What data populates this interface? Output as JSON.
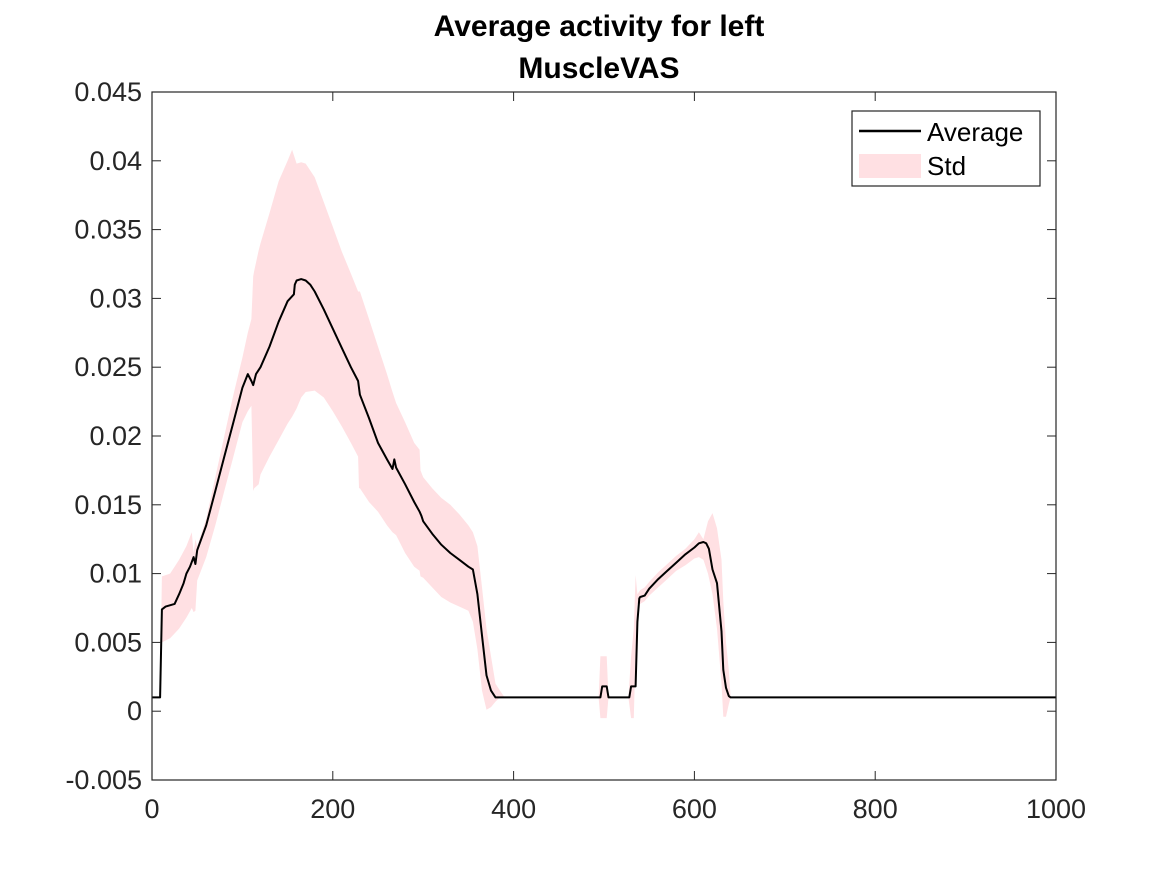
{
  "chart_data": {
    "type": "line",
    "title": [
      "Average activity for left",
      "MuscleVAS"
    ],
    "xlabel": "",
    "ylabel": "",
    "xlim": [
      0,
      1000
    ],
    "ylim": [
      -0.005,
      0.045
    ],
    "grid": false,
    "legend_placement": "top-right",
    "x_ticks": [
      0,
      200,
      400,
      600,
      800,
      1000
    ],
    "x_tick_labels": [
      "0",
      "200",
      "400",
      "600",
      "800",
      "1000"
    ],
    "y_ticks": [
      -0.005,
      0,
      0.005,
      0.01,
      0.015,
      0.02,
      0.025,
      0.03,
      0.035,
      0.04,
      0.045
    ],
    "y_tick_labels": [
      "-0.005",
      "0",
      "0.005",
      "0.01",
      "0.015",
      "0.02",
      "0.025",
      "0.03",
      "0.035",
      "0.04",
      "0.045"
    ],
    "series": [
      {
        "name": "Average",
        "color": "#000000",
        "x": [
          0,
          9,
          11,
          15,
          25,
          30,
          35,
          38,
          42,
          46,
          48,
          50,
          60,
          70,
          80,
          90,
          100,
          106,
          110,
          112,
          115,
          120,
          130,
          140,
          150,
          157,
          158,
          160,
          165,
          170,
          175,
          180,
          190,
          200,
          210,
          220,
          228,
          230,
          240,
          250,
          260,
          266,
          268,
          270,
          280,
          290,
          296,
          298,
          300,
          310,
          320,
          330,
          340,
          350,
          355,
          360,
          365,
          370,
          375,
          380,
          385,
          390,
          400,
          450,
          496,
          498,
          503,
          505,
          510,
          520,
          528,
          530,
          535,
          537,
          539,
          540,
          545,
          550,
          560,
          570,
          580,
          590,
          600,
          605,
          610,
          613,
          616,
          620,
          625,
          630,
          632,
          635,
          638,
          640,
          700,
          800,
          900,
          1000
        ],
        "y": [
          0.001,
          0.001,
          0.0074,
          0.0076,
          0.0078,
          0.0085,
          0.0093,
          0.01,
          0.0105,
          0.0112,
          0.0107,
          0.0117,
          0.0135,
          0.016,
          0.0185,
          0.021,
          0.0235,
          0.0245,
          0.024,
          0.0237,
          0.0245,
          0.025,
          0.0265,
          0.0283,
          0.0298,
          0.0303,
          0.031,
          0.0313,
          0.0314,
          0.0313,
          0.031,
          0.0305,
          0.0292,
          0.0278,
          0.0264,
          0.025,
          0.024,
          0.023,
          0.0213,
          0.0195,
          0.0183,
          0.0176,
          0.0183,
          0.0177,
          0.0165,
          0.0152,
          0.0145,
          0.0142,
          0.0138,
          0.0129,
          0.0121,
          0.0115,
          0.011,
          0.0105,
          0.0103,
          0.0085,
          0.0055,
          0.0026,
          0.0015,
          0.001,
          0.001,
          0.001,
          0.001,
          0.001,
          0.001,
          0.0018,
          0.0018,
          0.001,
          0.001,
          0.001,
          0.001,
          0.0018,
          0.0018,
          0.0065,
          0.0082,
          0.0083,
          0.0084,
          0.0089,
          0.0096,
          0.0102,
          0.0108,
          0.0114,
          0.0119,
          0.0122,
          0.0123,
          0.0122,
          0.0118,
          0.0103,
          0.0093,
          0.0058,
          0.003,
          0.0017,
          0.0011,
          0.001,
          0.001,
          0.001,
          0.001,
          0.001
        ]
      },
      {
        "name": "Std",
        "type": "area-band",
        "color": "#ffe0e3",
        "x": [
          0,
          9,
          11,
          20,
          30,
          38,
          44,
          46,
          48,
          50,
          60,
          70,
          80,
          90,
          100,
          106,
          110,
          112,
          113,
          118,
          120,
          130,
          140,
          150,
          155,
          160,
          165,
          170,
          180,
          190,
          200,
          210,
          220,
          228,
          229,
          230,
          240,
          250,
          260,
          266,
          270,
          280,
          290,
          296,
          297,
          300,
          310,
          320,
          330,
          340,
          350,
          355,
          360,
          365,
          370,
          375,
          380,
          385,
          390,
          400,
          450,
          494,
          496,
          503,
          505,
          510,
          520,
          527,
          530,
          533,
          535,
          537,
          540,
          545,
          550,
          560,
          570,
          580,
          590,
          600,
          605,
          610,
          615,
          620,
          625,
          630,
          632,
          635,
          638,
          640,
          700,
          800,
          900,
          1000
        ],
        "upper": [
          0.001,
          0.001,
          0.0098,
          0.01,
          0.011,
          0.012,
          0.013,
          0.0115,
          0.0125,
          0.012,
          0.014,
          0.017,
          0.02,
          0.023,
          0.0257,
          0.0275,
          0.0285,
          0.0316,
          0.032,
          0.0335,
          0.034,
          0.0362,
          0.0385,
          0.04,
          0.0408,
          0.0398,
          0.0399,
          0.0398,
          0.0388,
          0.037,
          0.0352,
          0.0334,
          0.0318,
          0.0305,
          0.0305,
          0.0305,
          0.0285,
          0.0265,
          0.0245,
          0.0232,
          0.0224,
          0.021,
          0.0195,
          0.019,
          0.0175,
          0.017,
          0.0162,
          0.0155,
          0.015,
          0.0143,
          0.0135,
          0.013,
          0.012,
          0.009,
          0.006,
          0.004,
          0.002,
          0.0015,
          0.001,
          0.001,
          0.001,
          0.001,
          0.004,
          0.004,
          0.001,
          0.001,
          0.001,
          0.001,
          0.004,
          0.006,
          0.0099,
          0.0085,
          0.0088,
          0.009,
          0.0094,
          0.0101,
          0.0107,
          0.0113,
          0.0118,
          0.0125,
          0.013,
          0.0125,
          0.0138,
          0.0144,
          0.0133,
          0.011,
          0.008,
          0.005,
          0.003,
          0.001,
          0.001,
          0.001,
          0.001,
          0.001
        ],
        "lower": [
          0.001,
          0.001,
          0.005,
          0.0053,
          0.006,
          0.0068,
          0.0075,
          0.0072,
          0.0073,
          0.0095,
          0.0112,
          0.0135,
          0.016,
          0.0185,
          0.021,
          0.0218,
          0.0222,
          0.016,
          0.0162,
          0.0165,
          0.0172,
          0.0185,
          0.0197,
          0.0209,
          0.0214,
          0.022,
          0.0228,
          0.0232,
          0.0233,
          0.0228,
          0.0218,
          0.0207,
          0.0195,
          0.0185,
          0.0162,
          0.0162,
          0.0152,
          0.0145,
          0.0135,
          0.013,
          0.0128,
          0.0115,
          0.0105,
          0.0102,
          0.0098,
          0.0097,
          0.009,
          0.0083,
          0.0079,
          0.0076,
          0.0073,
          0.0065,
          0.0045,
          0.0015,
          0.0001,
          0.0003,
          0.0007,
          0.001,
          0.001,
          0.001,
          0.001,
          0.001,
          -0.0005,
          -0.0005,
          0.001,
          0.001,
          0.001,
          0.001,
          -0.0005,
          -0.0005,
          0.0045,
          0.0078,
          0.0078,
          0.008,
          0.0084,
          0.009,
          0.0096,
          0.0102,
          0.0106,
          0.0111,
          0.0112,
          0.011,
          0.01,
          0.0085,
          0.006,
          0.002,
          -0.0004,
          -0.0004,
          0.0005,
          0.001,
          0.001,
          0.001,
          0.001,
          0.001
        ]
      }
    ]
  }
}
